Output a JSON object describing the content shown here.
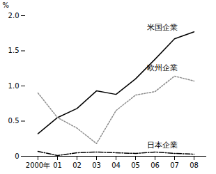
{
  "chart_data": {
    "type": "line",
    "y_label": "%",
    "categories": [
      "2000年",
      "01",
      "02",
      "03",
      "04",
      "05",
      "06",
      "07",
      "08"
    ],
    "ylim": [
      0,
      2.0
    ],
    "yticks": [
      0,
      0.5,
      {
        "value": 1.0,
        "label": "1.0"
      },
      1.5,
      {
        "value": 2.0,
        "label": "2.0"
      }
    ],
    "grid": false,
    "series": [
      {
        "name": "米国企業",
        "color": "#000000",
        "line_style": "solid",
        "values": [
          0.32,
          0.55,
          0.68,
          0.93,
          0.88,
          1.1,
          1.38,
          1.67,
          1.77
        ]
      },
      {
        "name": "欧州企業",
        "color": "#8c8c8c",
        "line_style": "dotted",
        "values": [
          0.9,
          0.55,
          0.4,
          0.18,
          0.65,
          0.87,
          0.92,
          1.14,
          1.07
        ]
      },
      {
        "name": "日本企業",
        "color": "#000000",
        "line_style": "dashdot",
        "values": [
          0.07,
          0.01,
          0.05,
          0.06,
          0.05,
          0.04,
          0.06,
          0.04,
          0.03
        ]
      }
    ]
  }
}
